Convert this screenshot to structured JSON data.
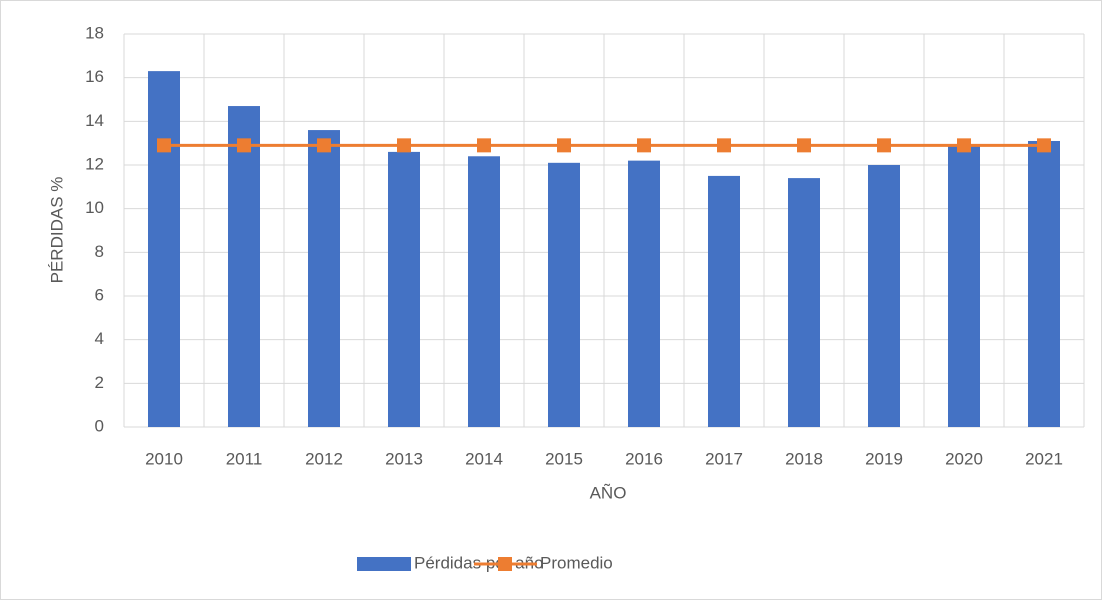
{
  "chart_data": {
    "type": "bar",
    "x_label": "AÑO",
    "y_label": "PÉRDIDAS %",
    "categories": [
      "2010",
      "2011",
      "2012",
      "2013",
      "2014",
      "2015",
      "2016",
      "2017",
      "2018",
      "2019",
      "2020",
      "2021"
    ],
    "series": [
      {
        "name": "Pérdidas por año",
        "type": "bar",
        "color": "#4472c4",
        "values": [
          16.3,
          14.7,
          13.6,
          12.6,
          12.4,
          12.1,
          12.2,
          11.5,
          11.4,
          12.0,
          12.9,
          13.1
        ]
      },
      {
        "name": "Promedio",
        "type": "line",
        "color": "#ed7d31",
        "values": [
          12.9,
          12.9,
          12.9,
          12.9,
          12.9,
          12.9,
          12.9,
          12.9,
          12.9,
          12.9,
          12.9,
          12.9
        ]
      }
    ],
    "ylim": [
      0,
      18
    ],
    "yticks": [
      0,
      2,
      4,
      6,
      8,
      10,
      12,
      14,
      16,
      18
    ],
    "grid": true,
    "legend": "bottom"
  }
}
